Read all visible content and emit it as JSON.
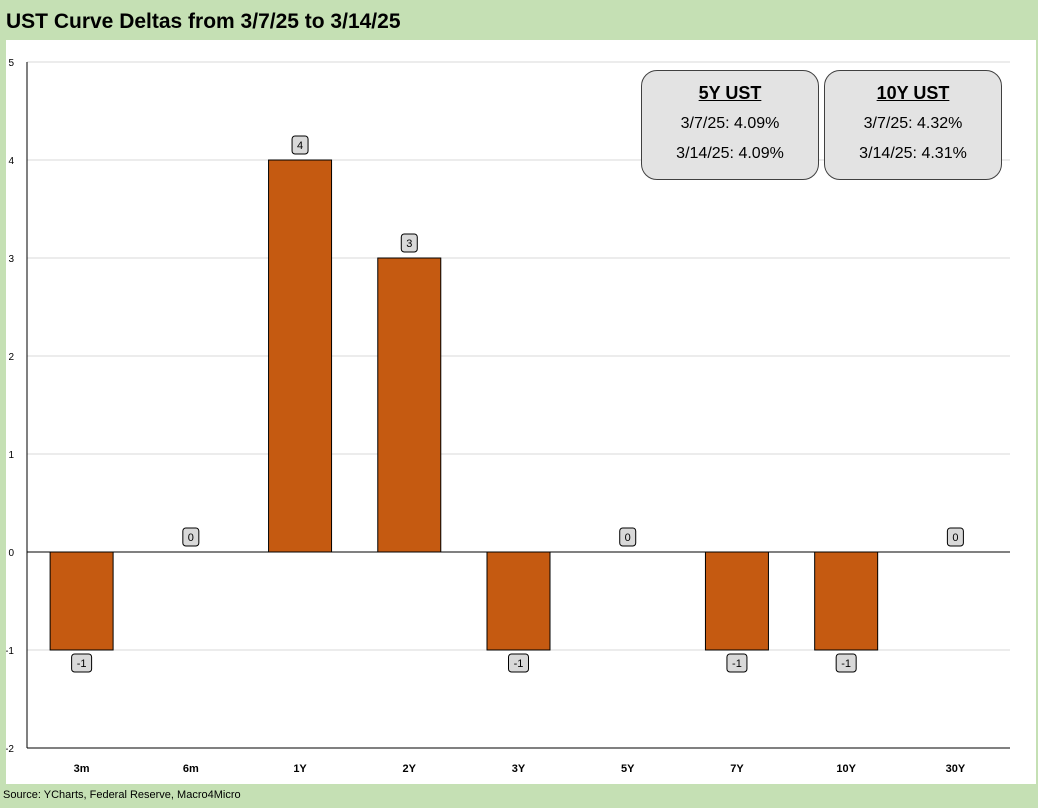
{
  "title": "UST Curve Deltas from 3/7/25 to 3/14/25",
  "source": "Source: YCharts, Federal Reserve, Macro4Micro",
  "colors": {
    "bar": "#c55a11",
    "background": "#c5e0b4",
    "plot": "#ffffff",
    "gridline": "#d9d9d9"
  },
  "boxes": [
    {
      "title": "5Y UST",
      "line1": "3/7/25: 4.09%",
      "line2": "3/14/25: 4.09%"
    },
    {
      "title": "10Y UST",
      "line1": "3/7/25: 4.32%",
      "line2": "3/14/25: 4.31%"
    }
  ],
  "chart_data": {
    "type": "bar",
    "title": "UST Curve Deltas from 3/7/25 to 3/14/25",
    "xlabel": "",
    "ylabel": "",
    "categories": [
      "3m",
      "6m",
      "1Y",
      "2Y",
      "3Y",
      "5Y",
      "7Y",
      "10Y",
      "30Y"
    ],
    "values": [
      -1,
      0,
      4,
      3,
      -1,
      0,
      -1,
      -1,
      0
    ],
    "ylim": [
      -2,
      5
    ],
    "yticks": [
      -2,
      -1,
      0,
      1,
      2,
      3,
      4,
      5
    ],
    "grid": true,
    "legend": "none",
    "data_labels": true
  }
}
